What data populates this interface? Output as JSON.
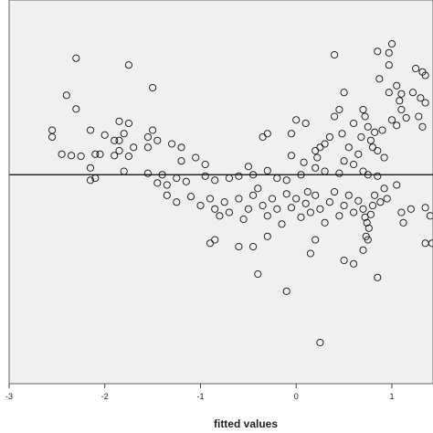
{
  "chart_data": {
    "type": "scatter",
    "title": "",
    "xlabel": "fitted values",
    "ylabel": "",
    "xlim": [
      -3.0,
      1.43
    ],
    "ylim": [
      -3.05,
      2.55
    ],
    "x_ticks": [
      -3,
      -2,
      -1,
      0,
      1
    ],
    "x_tick_labels": [
      "-3",
      "-2",
      "-1",
      "0",
      "1"
    ],
    "reference_line_y": 0,
    "grid": false,
    "legend": "none",
    "colors": {
      "plot_background": "#f0f0f0",
      "marker_edge": "#111111",
      "reference_line": "#000000"
    },
    "series": [
      {
        "marker": "open-circle",
        "points": [
          [
            -2.3,
            1.7
          ],
          [
            -1.75,
            1.6
          ],
          [
            -2.4,
            1.16
          ],
          [
            -2.3,
            0.96
          ],
          [
            -1.5,
            1.27
          ],
          [
            0.4,
            1.75
          ],
          [
            0.85,
            1.8
          ],
          [
            0.97,
            1.78
          ],
          [
            1.0,
            1.91
          ],
          [
            0.97,
            1.6
          ],
          [
            1.25,
            1.55
          ],
          [
            1.32,
            1.5
          ],
          [
            1.35,
            1.45
          ],
          [
            0.87,
            1.4
          ],
          [
            0.97,
            1.2
          ],
          [
            1.05,
            1.3
          ],
          [
            1.1,
            1.18
          ],
          [
            1.22,
            1.2
          ],
          [
            1.3,
            1.12
          ],
          [
            1.35,
            1.05
          ],
          [
            1.08,
            1.08
          ],
          [
            1.1,
            0.95
          ],
          [
            1.15,
            0.83
          ],
          [
            1.0,
            0.8
          ],
          [
            1.05,
            0.72
          ],
          [
            1.28,
            0.85
          ],
          [
            1.32,
            0.7
          ],
          [
            -2.15,
            0.65
          ],
          [
            -2.0,
            0.58
          ],
          [
            -2.55,
            0.65
          ],
          [
            -2.55,
            0.55
          ],
          [
            -1.9,
            0.5
          ],
          [
            -1.8,
            0.6
          ],
          [
            -1.85,
            0.5
          ],
          [
            -1.85,
            0.78
          ],
          [
            -1.75,
            0.75
          ],
          [
            -1.5,
            0.65
          ],
          [
            -1.55,
            0.55
          ],
          [
            -1.45,
            0.5
          ],
          [
            -1.3,
            0.45
          ],
          [
            -1.2,
            0.4
          ],
          [
            -2.05,
            0.3
          ],
          [
            -1.85,
            0.35
          ],
          [
            -1.7,
            0.4
          ],
          [
            -1.55,
            0.4
          ],
          [
            -1.2,
            0.2
          ],
          [
            -1.05,
            0.25
          ],
          [
            -0.95,
            0.15
          ],
          [
            -2.25,
            0.27
          ],
          [
            -2.1,
            0.3
          ],
          [
            -1.9,
            0.28
          ],
          [
            -1.75,
            0.27
          ],
          [
            -2.45,
            0.3
          ],
          [
            -2.35,
            0.28
          ],
          [
            -2.15,
            0.1
          ],
          [
            -1.8,
            0.05
          ],
          [
            -1.55,
            0.02
          ],
          [
            -1.4,
            0.0
          ],
          [
            -2.1,
            -0.05
          ],
          [
            -2.15,
            -0.08
          ],
          [
            -1.45,
            -0.12
          ],
          [
            -1.35,
            -0.15
          ],
          [
            -1.25,
            -0.05
          ],
          [
            -1.15,
            -0.1
          ],
          [
            -0.95,
            -0.02
          ],
          [
            -0.85,
            -0.08
          ],
          [
            -0.7,
            -0.05
          ],
          [
            -0.6,
            -0.02
          ],
          [
            -0.5,
            0.12
          ],
          [
            -0.45,
            0.0
          ],
          [
            -0.3,
            0.06
          ],
          [
            -0.2,
            -0.05
          ],
          [
            -0.1,
            -0.08
          ],
          [
            0.05,
            0.0
          ],
          [
            0.2,
            0.1
          ],
          [
            0.3,
            0.05
          ],
          [
            0.45,
            0.02
          ],
          [
            0.5,
            0.2
          ],
          [
            0.6,
            0.15
          ],
          [
            0.7,
            0.05
          ],
          [
            0.75,
            0.0
          ],
          [
            0.85,
            -0.02
          ],
          [
            -1.35,
            -0.3
          ],
          [
            -1.25,
            -0.4
          ],
          [
            -1.1,
            -0.32
          ],
          [
            -1.0,
            -0.45
          ],
          [
            -0.9,
            -0.35
          ],
          [
            -0.85,
            -0.5
          ],
          [
            -0.8,
            -0.6
          ],
          [
            -0.75,
            -0.4
          ],
          [
            -0.7,
            -0.55
          ],
          [
            -0.6,
            -0.35
          ],
          [
            -0.55,
            -0.65
          ],
          [
            -0.5,
            -0.5
          ],
          [
            -0.45,
            -0.3
          ],
          [
            -0.4,
            -0.2
          ],
          [
            -0.35,
            -0.45
          ],
          [
            -0.3,
            -0.6
          ],
          [
            -0.25,
            -0.35
          ],
          [
            -0.2,
            -0.5
          ],
          [
            -0.15,
            -0.72
          ],
          [
            -0.1,
            -0.28
          ],
          [
            -0.05,
            -0.48
          ],
          [
            0.0,
            -0.35
          ],
          [
            0.05,
            -0.62
          ],
          [
            0.1,
            -0.42
          ],
          [
            0.12,
            -0.25
          ],
          [
            0.15,
            -0.55
          ],
          [
            0.2,
            -0.3
          ],
          [
            0.25,
            -0.5
          ],
          [
            0.3,
            -0.7
          ],
          [
            0.35,
            -0.4
          ],
          [
            0.4,
            -0.25
          ],
          [
            0.45,
            -0.6
          ],
          [
            0.5,
            -0.45
          ],
          [
            0.55,
            -0.3
          ],
          [
            0.6,
            -0.55
          ],
          [
            0.65,
            -0.38
          ],
          [
            0.7,
            -0.5
          ],
          [
            0.72,
            -0.62
          ],
          [
            0.74,
            -0.7
          ],
          [
            0.76,
            -0.78
          ],
          [
            0.78,
            -0.58
          ],
          [
            0.8,
            -0.45
          ],
          [
            0.73,
            -0.9
          ],
          [
            0.75,
            -0.95
          ],
          [
            0.82,
            -0.3
          ],
          [
            0.88,
            -0.4
          ],
          [
            0.92,
            -0.2
          ],
          [
            0.95,
            -0.35
          ],
          [
            1.05,
            -0.15
          ],
          [
            1.1,
            -0.55
          ],
          [
            1.12,
            -0.7
          ],
          [
            1.2,
            -0.5
          ],
          [
            1.35,
            -0.48
          ],
          [
            1.4,
            -0.6
          ],
          [
            1.35,
            -1.0
          ],
          [
            1.42,
            -1.0
          ],
          [
            -0.9,
            -1.0
          ],
          [
            -0.85,
            -0.95
          ],
          [
            -0.6,
            -1.05
          ],
          [
            -0.45,
            -1.05
          ],
          [
            -0.3,
            -0.9
          ],
          [
            0.15,
            -1.15
          ],
          [
            0.2,
            -0.95
          ],
          [
            0.5,
            -1.25
          ],
          [
            0.6,
            -1.3
          ],
          [
            0.7,
            -1.1
          ],
          [
            0.85,
            -1.5
          ],
          [
            -0.4,
            -1.45
          ],
          [
            -0.1,
            -1.7
          ],
          [
            0.25,
            -2.45
          ],
          [
            -0.05,
            0.6
          ],
          [
            0.0,
            0.8
          ],
          [
            0.1,
            0.75
          ],
          [
            0.2,
            0.35
          ],
          [
            0.25,
            0.4
          ],
          [
            0.3,
            0.45
          ],
          [
            0.35,
            0.55
          ],
          [
            0.4,
            0.85
          ],
          [
            0.45,
            0.95
          ],
          [
            0.48,
            0.6
          ],
          [
            0.5,
            1.2
          ],
          [
            0.55,
            0.4
          ],
          [
            0.6,
            0.75
          ],
          [
            0.65,
            0.3
          ],
          [
            0.68,
            0.55
          ],
          [
            0.7,
            0.95
          ],
          [
            0.72,
            0.85
          ],
          [
            0.75,
            0.7
          ],
          [
            0.78,
            0.5
          ],
          [
            0.8,
            0.4
          ],
          [
            0.82,
            0.62
          ],
          [
            0.85,
            0.35
          ],
          [
            0.9,
            0.65
          ],
          [
            0.92,
            0.25
          ],
          [
            -0.35,
            0.55
          ],
          [
            -0.3,
            0.6
          ],
          [
            0.22,
            0.25
          ],
          [
            -0.05,
            0.28
          ],
          [
            0.08,
            0.18
          ]
        ]
      }
    ]
  }
}
